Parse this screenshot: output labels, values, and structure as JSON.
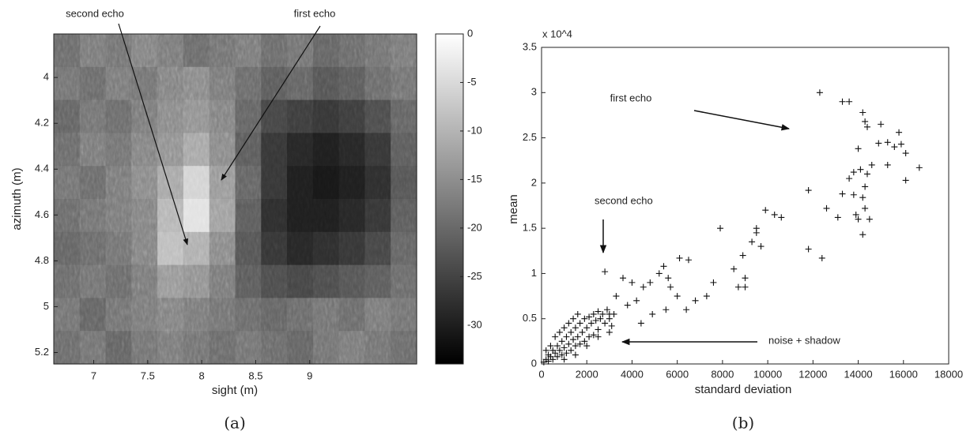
{
  "chart_data": [
    {
      "type": "heatmap",
      "caption": "(a)",
      "xlabel": "sight (m)",
      "ylabel": "azimuth (m)",
      "annotations": [
        "second echo",
        "first echo"
      ],
      "xlim": [
        6.63,
        9.99
      ],
      "ylim": [
        3.81,
        5.25
      ],
      "y_reversed": true,
      "xticks": [
        7,
        7.5,
        8,
        8.5,
        9
      ],
      "yticks": [
        4,
        4.2,
        4.4,
        4.6,
        4.8,
        5,
        5.2
      ],
      "clim": [
        -34,
        0
      ],
      "cticks": [
        0,
        -5,
        -10,
        -15,
        -20,
        -25,
        -30
      ],
      "z": [
        [
          -20,
          -18,
          -19,
          -17,
          -18,
          -20,
          -19,
          -18,
          -20,
          -19,
          -21,
          -20,
          -19,
          -18
        ],
        [
          -19,
          -20,
          -18,
          -19,
          -17,
          -16,
          -18,
          -20,
          -22,
          -21,
          -23,
          -22,
          -20,
          -19
        ],
        [
          -21,
          -19,
          -20,
          -18,
          -16,
          -15,
          -17,
          -21,
          -25,
          -26,
          -27,
          -26,
          -24,
          -21
        ],
        [
          -20,
          -18,
          -19,
          -17,
          -15,
          -12,
          -16,
          -22,
          -27,
          -29,
          -30,
          -29,
          -27,
          -22
        ],
        [
          -19,
          -20,
          -18,
          -16,
          -12,
          -6,
          -14,
          -21,
          -27,
          -30,
          -31,
          -30,
          -28,
          -23
        ],
        [
          -20,
          -19,
          -18,
          -17,
          -10,
          -4,
          -13,
          -22,
          -28,
          -30,
          -30,
          -29,
          -27,
          -22
        ],
        [
          -21,
          -20,
          -19,
          -17,
          -9,
          -11,
          -16,
          -23,
          -27,
          -29,
          -28,
          -27,
          -25,
          -21
        ],
        [
          -20,
          -19,
          -20,
          -18,
          -14,
          -15,
          -18,
          -22,
          -24,
          -25,
          -24,
          -23,
          -22,
          -20
        ],
        [
          -19,
          -21,
          -19,
          -18,
          -17,
          -18,
          -19,
          -20,
          -21,
          -20,
          -19,
          -20,
          -18,
          -19
        ],
        [
          -20,
          -19,
          -21,
          -19,
          -18,
          -19,
          -20,
          -19,
          -20,
          -21,
          -19,
          -18,
          -19,
          -20
        ]
      ]
    },
    {
      "type": "scatter",
      "caption": "(b)",
      "xlabel": "standard deviation",
      "ylabel": "mean",
      "y_multiplier": "x 10^4",
      "annotations": [
        "first echo",
        "second echo",
        "noise + shadow"
      ],
      "xlim": [
        0,
        18000
      ],
      "ylim": [
        0,
        3.5
      ],
      "xticks": [
        0,
        2000,
        4000,
        6000,
        8000,
        10000,
        12000,
        14000,
        16000,
        18000
      ],
      "yticks": [
        0,
        0.5,
        1,
        1.5,
        2,
        2.5,
        3,
        3.5
      ],
      "color": "#111111",
      "x": [
        12300,
        13300,
        13600,
        14200,
        14300,
        14400,
        15000,
        15800,
        15300,
        14900,
        15900,
        16100,
        15600,
        14000,
        14600,
        13800,
        14100,
        14400,
        15300,
        16700,
        11800,
        13600,
        13300,
        13800,
        14300,
        14200,
        12600,
        14300,
        13900,
        13100,
        14000,
        14500,
        14200,
        12400,
        11800,
        16100,
        10300,
        10600,
        9900,
        9500,
        9500,
        9300,
        9700,
        7900,
        8900,
        9000,
        8700,
        9000,
        8500,
        7600,
        6800,
        6100,
        6500,
        5400,
        5200,
        5600,
        4800,
        5700,
        4500,
        6000,
        3600,
        4000,
        3300,
        4200,
        2800,
        3800,
        5500,
        4900,
        7300,
        6400,
        4400,
        3000,
        100,
        200,
        300,
        300,
        400,
        500,
        500,
        600,
        700,
        700,
        800,
        900,
        900,
        1000,
        1100,
        1100,
        1200,
        1300,
        1300,
        1400,
        1500,
        1500,
        1600,
        1700,
        1700,
        1800,
        1900,
        1900,
        2000,
        2100,
        2100,
        2200,
        2300,
        2300,
        2400,
        2500,
        2500,
        2600,
        2700,
        2800,
        2900,
        3000,
        3100,
        3200,
        400,
        600,
        800,
        1000,
        1200,
        1400,
        1600,
        200,
        1000,
        1500,
        2000,
        2500,
        3000
      ],
      "y": [
        3.0,
        2.9,
        2.9,
        2.78,
        2.68,
        2.62,
        2.65,
        2.56,
        2.45,
        2.44,
        2.43,
        2.33,
        2.4,
        2.38,
        2.2,
        2.12,
        2.15,
        2.1,
        2.2,
        2.17,
        1.92,
        2.05,
        1.88,
        1.87,
        1.96,
        1.84,
        1.72,
        1.72,
        1.65,
        1.62,
        1.6,
        1.6,
        1.43,
        1.17,
        1.27,
        2.03,
        1.65,
        1.62,
        1.7,
        1.5,
        1.45,
        1.35,
        1.3,
        1.5,
        1.2,
        0.85,
        0.85,
        0.95,
        1.05,
        0.9,
        0.7,
        1.17,
        1.15,
        1.08,
        1.0,
        0.95,
        0.9,
        0.85,
        0.85,
        0.75,
        0.95,
        0.9,
        0.75,
        0.7,
        1.02,
        0.65,
        0.6,
        0.55,
        0.75,
        0.6,
        0.45,
        0.55,
        0.02,
        0.05,
        0.03,
        0.1,
        0.08,
        0.05,
        0.15,
        0.12,
        0.2,
        0.08,
        0.15,
        0.25,
        0.1,
        0.18,
        0.3,
        0.12,
        0.22,
        0.35,
        0.15,
        0.27,
        0.4,
        0.2,
        0.3,
        0.45,
        0.22,
        0.35,
        0.5,
        0.25,
        0.4,
        0.52,
        0.3,
        0.45,
        0.55,
        0.32,
        0.48,
        0.58,
        0.38,
        0.5,
        0.55,
        0.45,
        0.6,
        0.5,
        0.42,
        0.55,
        0.2,
        0.3,
        0.35,
        0.4,
        0.45,
        0.5,
        0.55,
        0.15,
        0.05,
        0.1,
        0.2,
        0.3,
        0.35
      ]
    }
  ]
}
